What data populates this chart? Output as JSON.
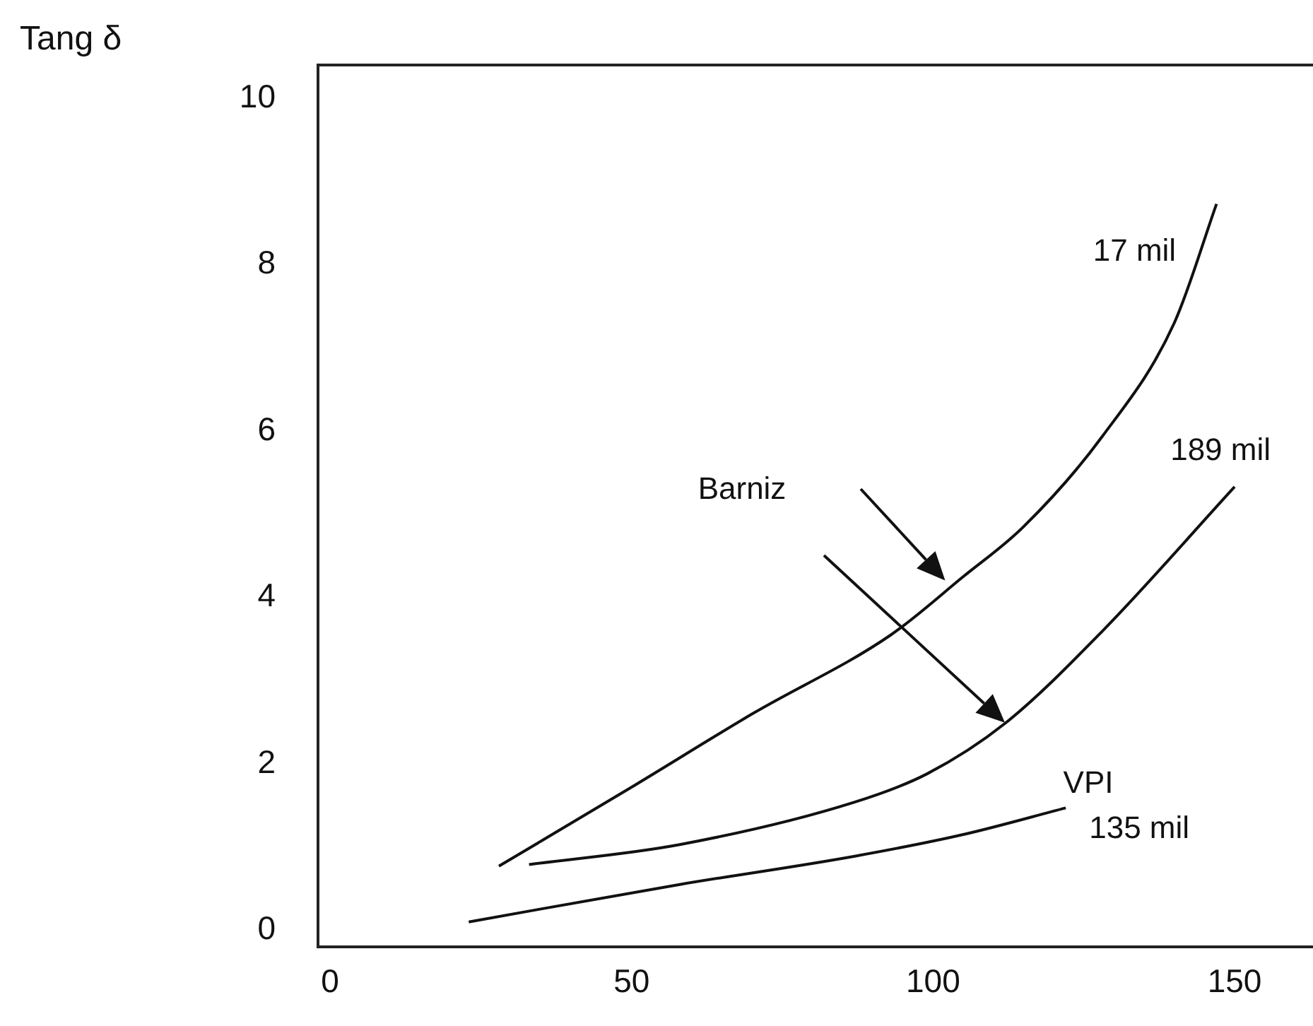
{
  "chart_data": {
    "type": "line",
    "ylabel": "Tang δ",
    "xlim": [
      -2,
      163
    ],
    "xticks": [
      0,
      50,
      100,
      150
    ],
    "ylim": [
      -0.2,
      10.4
    ],
    "yticks": [
      0,
      2,
      4,
      6,
      8,
      10
    ],
    "grid": false,
    "legend": false,
    "marker": "none",
    "line_style": "solid",
    "series": [
      {
        "name": "17 mil",
        "color": "#111111",
        "x": [
          28,
          50,
          70,
          93,
          105,
          115,
          128,
          140,
          147
        ],
        "values": [
          0.77,
          1.72,
          2.6,
          3.55,
          4.25,
          4.85,
          5.93,
          7.3,
          8.73
        ]
      },
      {
        "name": "189 mil",
        "color": "#111111",
        "x": [
          33,
          58,
          87,
          99,
          112,
          128,
          150
        ],
        "values": [
          0.79,
          1.03,
          1.54,
          1.88,
          2.49,
          3.59,
          5.33
        ]
      },
      {
        "name": "135 mil",
        "color": "#111111",
        "x": [
          23,
          58,
          87,
          105,
          122
        ],
        "values": [
          0.1,
          0.55,
          0.89,
          1.15,
          1.47
        ]
      }
    ],
    "annotations": [
      "VPI",
      "Barniz"
    ]
  }
}
